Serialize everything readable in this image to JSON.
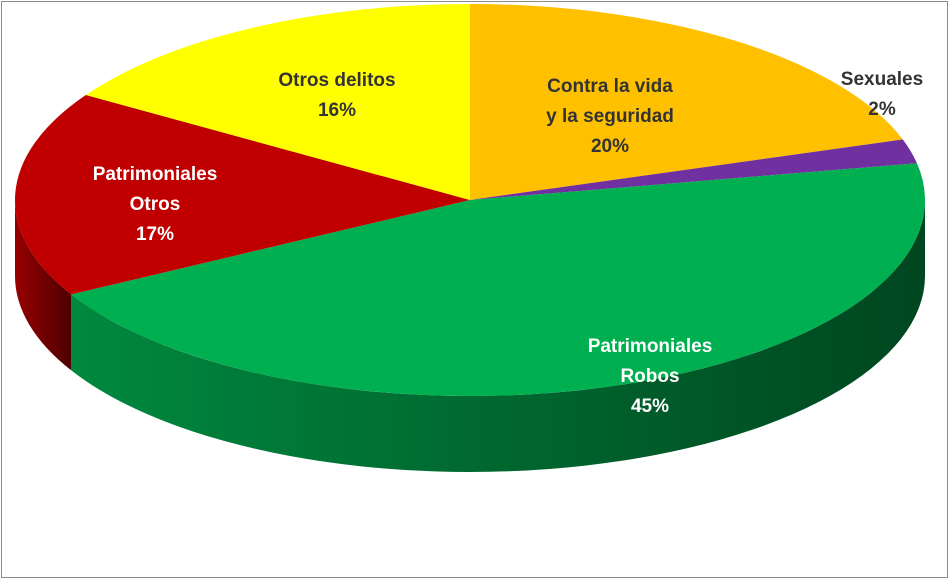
{
  "chart_data": {
    "type": "pie",
    "categories": [
      "Contra la vida\ny la seguridad",
      "Sexuales",
      "Patrimoniales\nRobos",
      "Patrimoniales\nOtros",
      "Otros delitos"
    ],
    "values": [
      20,
      2,
      45,
      17,
      16
    ],
    "value_labels": [
      "20%",
      "2%",
      "45%",
      "17%",
      "16%"
    ],
    "colors": [
      "#ffc000",
      "#7030a0",
      "#00b050",
      "#c00000",
      "#ffff00"
    ]
  }
}
